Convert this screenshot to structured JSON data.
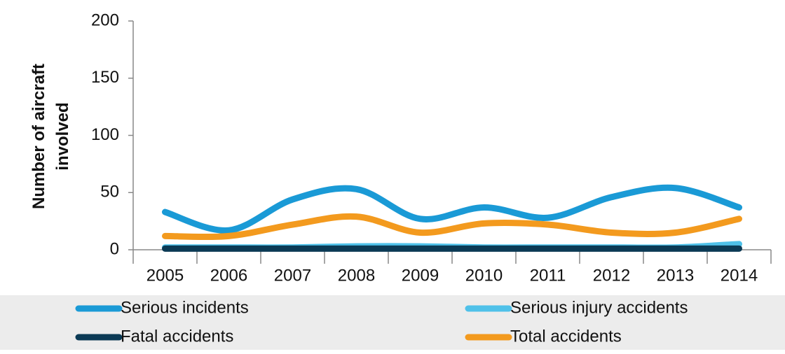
{
  "chart_data": {
    "type": "line",
    "y_label": "Number of aircraft involved",
    "categories": [
      "2005",
      "2006",
      "2007",
      "2008",
      "2009",
      "2010",
      "2011",
      "2012",
      "2013",
      "2014"
    ],
    "series": [
      {
        "name": "Serious incidents",
        "color": "#1a9ad6",
        "values": [
          33,
          17,
          44,
          53,
          27,
          37,
          28,
          46,
          54,
          37
        ]
      },
      {
        "name": "Serious injury accidents",
        "color": "#4fc1e9",
        "values": [
          2,
          2,
          2,
          3,
          3,
          2,
          2,
          2,
          2,
          5
        ]
      },
      {
        "name": "Fatal accidents",
        "color": "#0b3a55",
        "values": [
          1,
          1,
          1,
          1,
          1,
          1,
          1,
          1,
          1,
          1
        ]
      },
      {
        "name": "Total accidents",
        "color": "#f39a1e",
        "values": [
          12,
          12,
          22,
          29,
          15,
          23,
          22,
          15,
          15,
          27
        ]
      }
    ],
    "ylim": [
      0,
      200
    ],
    "yticks": [
      0,
      50,
      100,
      150,
      200
    ],
    "grid": false,
    "smooth": true
  }
}
